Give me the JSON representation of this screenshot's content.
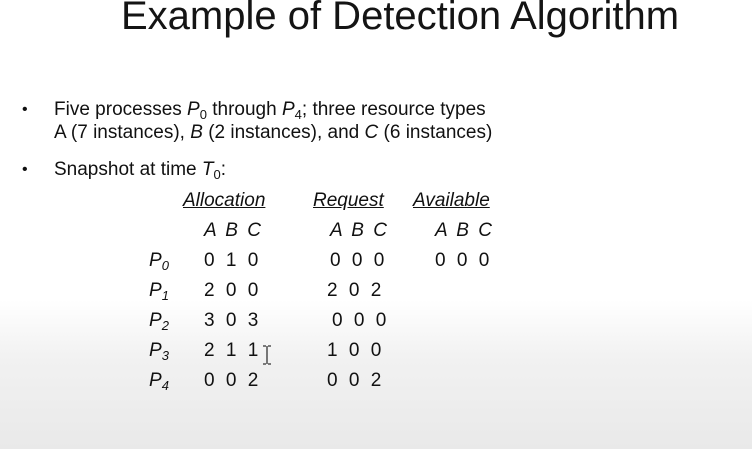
{
  "slide": {
    "title": "Example of Detection Algorithm"
  },
  "bullets": [
    {
      "prefix": "Five processes ",
      "p_start": "P",
      "p_start_sub": "0",
      "through": " through ",
      "p_end": "P",
      "p_end_sub": "4",
      "after": "; three resource types",
      "line2_a": "A (7 instances), ",
      "line2_b_letter": "B",
      "line2_b": " (2 instances), and ",
      "line2_c_letter": "C",
      "line2_c": " (6 instances)"
    },
    {
      "prefix": "Snapshot at time ",
      "t": "T",
      "t_sub": "0",
      "after": ":"
    }
  ],
  "table": {
    "headers": [
      "Allocation",
      "Request",
      "Available"
    ],
    "subheaders": [
      "A B C",
      "A B C",
      "A B C"
    ],
    "rows": [
      {
        "process": "P",
        "sub": "0",
        "allocation": "0 1 0",
        "request": "0 0 0",
        "available": "0 0 0"
      },
      {
        "process": "P",
        "sub": "1",
        "allocation": "2 0 0",
        "request": "2 0 2",
        "available": ""
      },
      {
        "process": "P",
        "sub": "2",
        "allocation": "3 0 3",
        "request": "0 0 0",
        "available": ""
      },
      {
        "process": "P",
        "sub": "3",
        "allocation": "2 1 1",
        "request": "1 0 0",
        "available": ""
      },
      {
        "process": "P",
        "sub": "4",
        "allocation": "0 0 2",
        "request": "0 0 2",
        "available": ""
      }
    ]
  },
  "icons": {
    "cursor": "text-cursor-icon"
  }
}
